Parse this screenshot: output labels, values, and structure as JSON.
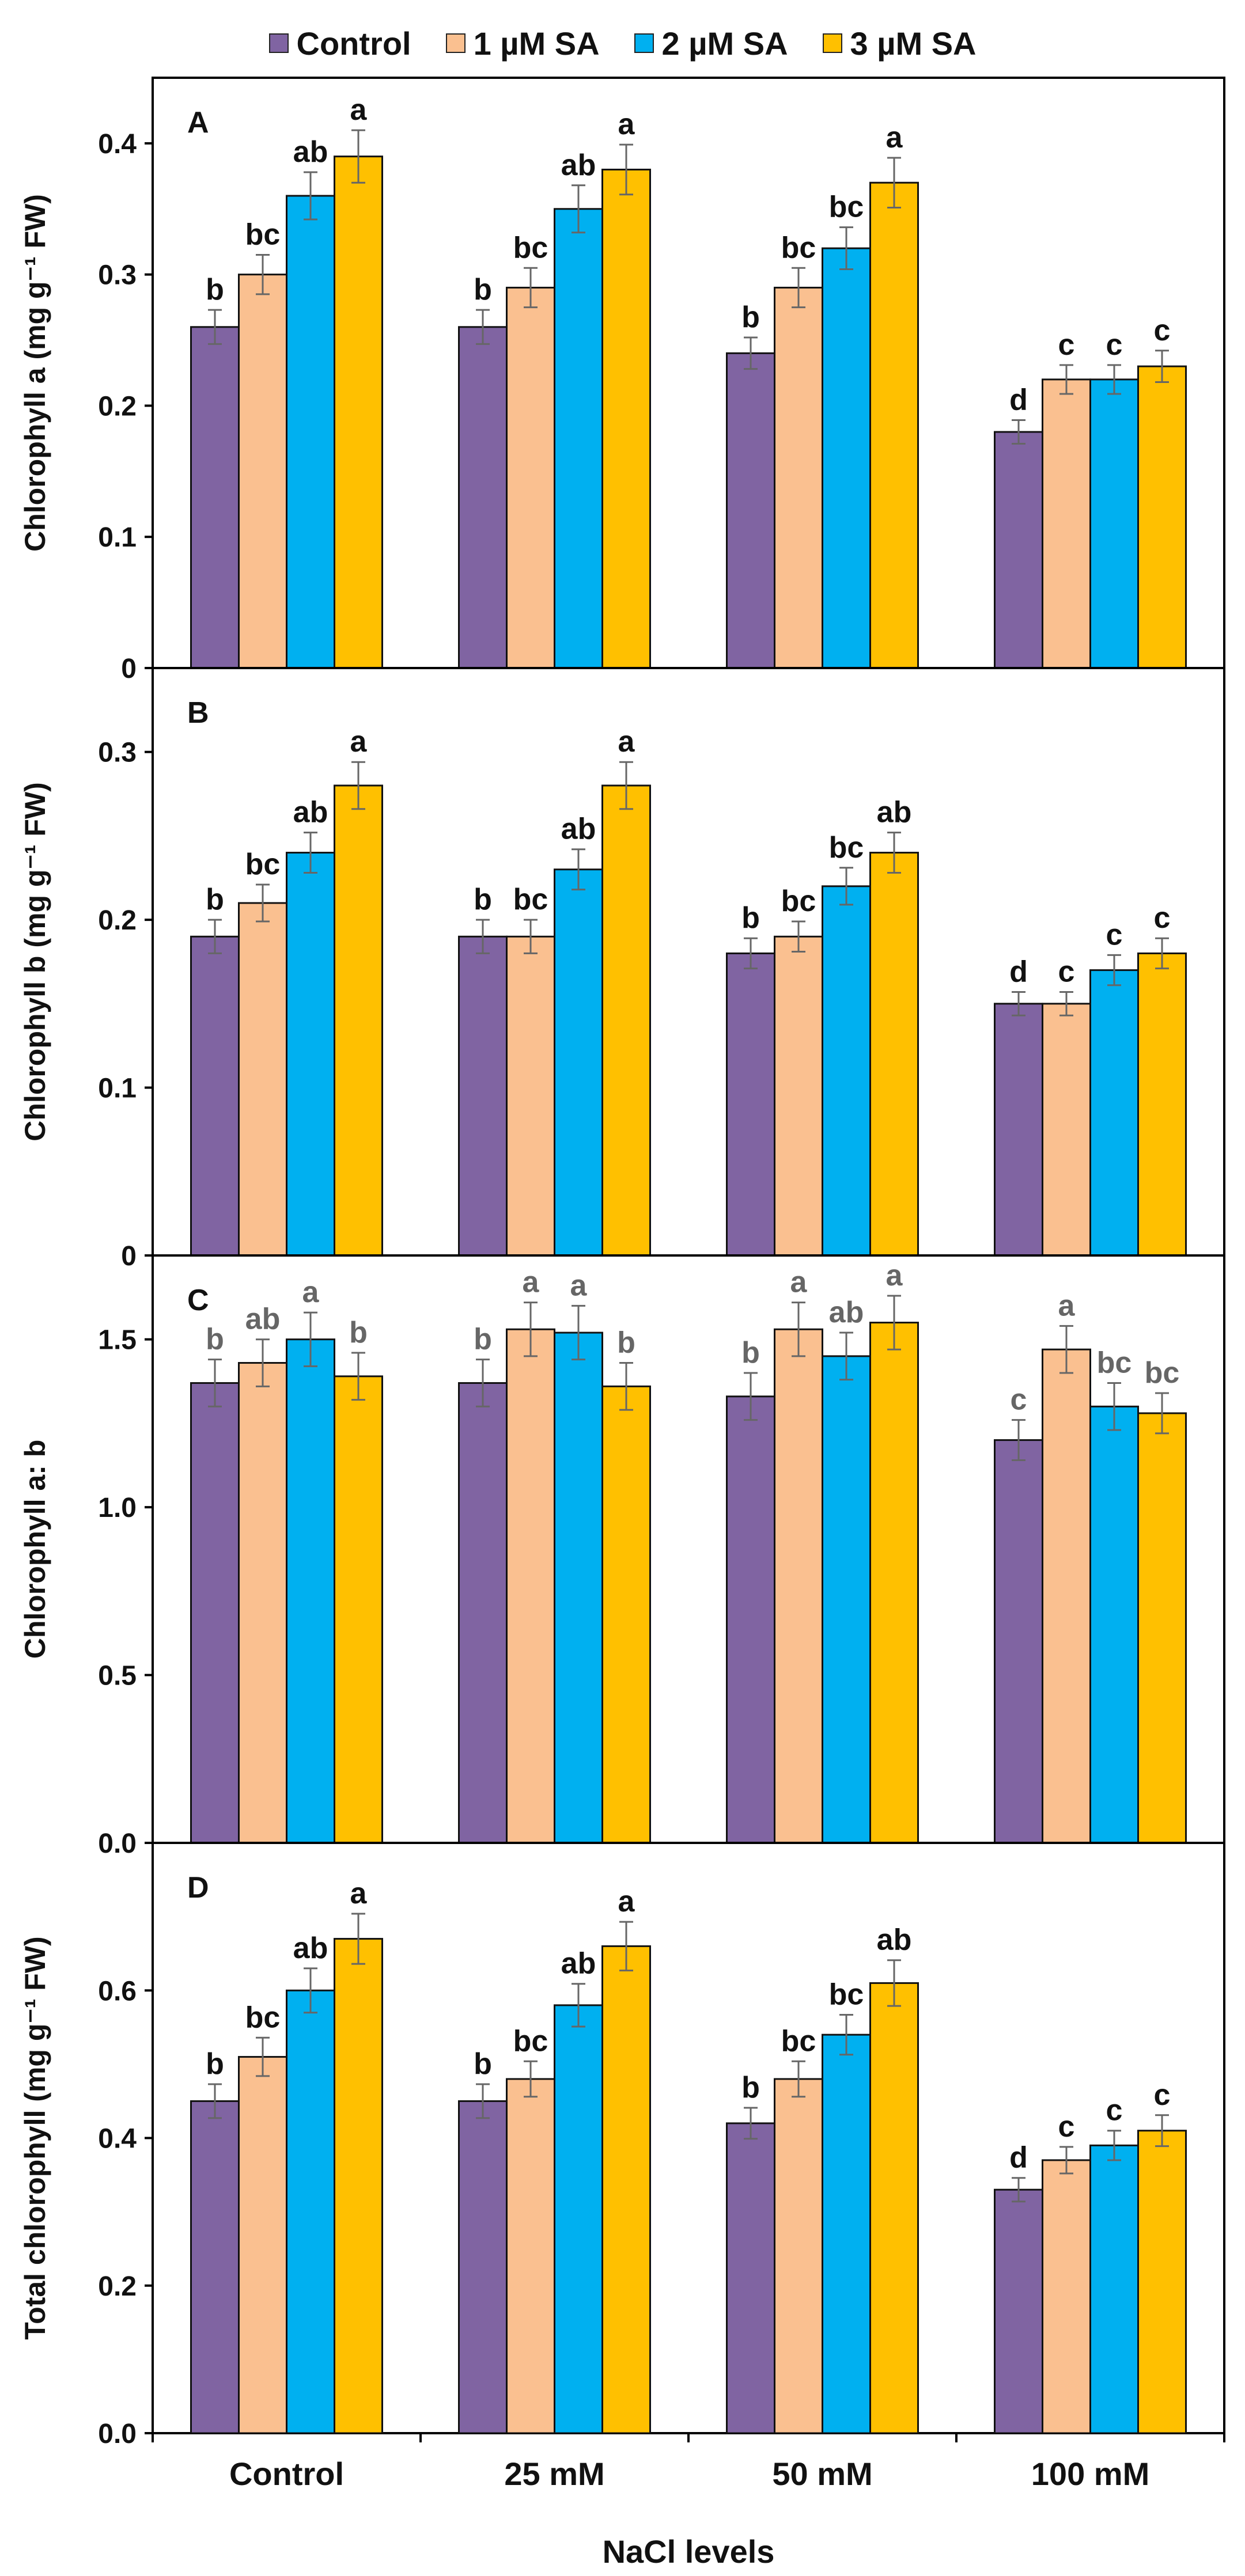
{
  "legend": [
    {
      "label": "Control",
      "color": "#8064a2"
    },
    {
      "label": "1 µM SA",
      "color": "#fac090"
    },
    {
      "label": "2 µM SA",
      "color": "#00b0f0"
    },
    {
      "label": "3 µM SA",
      "color": "#ffc000"
    }
  ],
  "chart_data": [
    {
      "panel": "A",
      "type": "bar",
      "categories": [
        "Control",
        "25 mM",
        "50 mM",
        "100 mM"
      ],
      "ylabel": "Chlorophyll a (mg g⁻¹ FW)",
      "ylim": [
        0,
        0.45
      ],
      "yticks": [
        0,
        0.1,
        0.2,
        0.3,
        0.4
      ],
      "ytick_labels": [
        "0",
        "0.1",
        "0.2",
        "0.3",
        "0.4"
      ],
      "series": [
        {
          "name": "Control",
          "values": [
            0.26,
            0.26,
            0.24,
            0.18
          ],
          "errors": [
            0.013,
            0.013,
            0.012,
            0.009
          ],
          "labels": [
            "b",
            "b",
            "b",
            "d"
          ]
        },
        {
          "name": "1 µM SA",
          "values": [
            0.3,
            0.29,
            0.29,
            0.22
          ],
          "errors": [
            0.015,
            0.015,
            0.015,
            0.011
          ],
          "labels": [
            "bc",
            "bc",
            "bc",
            "c"
          ]
        },
        {
          "name": "2 µM SA",
          "values": [
            0.36,
            0.35,
            0.32,
            0.22
          ],
          "errors": [
            0.018,
            0.018,
            0.016,
            0.011
          ],
          "labels": [
            "ab",
            "ab",
            "bc",
            "c"
          ]
        },
        {
          "name": "3 µM SA",
          "values": [
            0.39,
            0.38,
            0.37,
            0.23
          ],
          "errors": [
            0.02,
            0.019,
            0.019,
            0.012
          ],
          "labels": [
            "a",
            "a",
            "a",
            "c"
          ]
        }
      ]
    },
    {
      "panel": "B",
      "type": "bar",
      "categories": [
        "Control",
        "25 mM",
        "50 mM",
        "100 mM"
      ],
      "ylabel": "Chlorophyll b (mg g⁻¹ FW)",
      "ylim": [
        0,
        0.35
      ],
      "yticks": [
        0,
        0.1,
        0.2,
        0.3
      ],
      "ytick_labels": [
        "0",
        "0.1",
        "0.2",
        "0.3"
      ],
      "series": [
        {
          "name": "Control",
          "values": [
            0.19,
            0.19,
            0.18,
            0.15
          ],
          "errors": [
            0.01,
            0.01,
            0.009,
            0.007
          ],
          "labels": [
            "b",
            "b",
            "b",
            "d"
          ]
        },
        {
          "name": "1 µM SA",
          "values": [
            0.21,
            0.19,
            0.19,
            0.15
          ],
          "errors": [
            0.011,
            0.01,
            0.009,
            0.007
          ],
          "labels": [
            "bc",
            "bc",
            "bc",
            "c"
          ]
        },
        {
          "name": "2 µM SA",
          "values": [
            0.24,
            0.23,
            0.22,
            0.17
          ],
          "errors": [
            0.012,
            0.012,
            0.011,
            0.009
          ],
          "labels": [
            "ab",
            "ab",
            "bc",
            "c"
          ]
        },
        {
          "name": "3 µM SA",
          "values": [
            0.28,
            0.28,
            0.24,
            0.18
          ],
          "errors": [
            0.014,
            0.014,
            0.012,
            0.009
          ],
          "labels": [
            "a",
            "a",
            "ab",
            "c"
          ]
        }
      ]
    },
    {
      "panel": "C",
      "type": "bar",
      "label_color": "grey",
      "categories": [
        "Control",
        "25 mM",
        "50 mM",
        "100 mM"
      ],
      "ylabel": "Chlorophyll a: b",
      "ylim": [
        0,
        1.75
      ],
      "yticks": [
        0,
        0.5,
        1.0,
        1.5
      ],
      "ytick_labels": [
        "0.0",
        "0.5",
        "1.0",
        "1.5"
      ],
      "series": [
        {
          "name": "Control",
          "values": [
            1.37,
            1.37,
            1.33,
            1.2
          ],
          "errors": [
            0.07,
            0.07,
            0.07,
            0.06
          ],
          "labels": [
            "b",
            "b",
            "b",
            "c"
          ]
        },
        {
          "name": "1 µM SA",
          "values": [
            1.43,
            1.53,
            1.53,
            1.47
          ],
          "errors": [
            0.07,
            0.08,
            0.08,
            0.07
          ],
          "labels": [
            "ab",
            "a",
            "a",
            "a"
          ]
        },
        {
          "name": "2 µM SA",
          "values": [
            1.5,
            1.52,
            1.45,
            1.3
          ],
          "errors": [
            0.08,
            0.08,
            0.07,
            0.07
          ],
          "labels": [
            "a",
            "a",
            "ab",
            "bc"
          ]
        },
        {
          "name": "3 µM SA",
          "values": [
            1.39,
            1.36,
            1.55,
            1.28
          ],
          "errors": [
            0.07,
            0.07,
            0.08,
            0.06
          ],
          "labels": [
            "b",
            "b",
            "a",
            "bc"
          ]
        }
      ]
    },
    {
      "panel": "D",
      "type": "bar",
      "categories": [
        "Control",
        "25 mM",
        "50 mM",
        "100 mM"
      ],
      "ylabel": "Total chlorophyll (mg g⁻¹ FW)",
      "ylim": [
        0,
        0.8
      ],
      "yticks": [
        0,
        0.2,
        0.4,
        0.6
      ],
      "ytick_labels": [
        "0.0",
        "0.2",
        "0.4",
        "0.6"
      ],
      "xlabel": "NaCl levels",
      "series": [
        {
          "name": "Control",
          "values": [
            0.45,
            0.45,
            0.42,
            0.33
          ],
          "errors": [
            0.023,
            0.023,
            0.021,
            0.016
          ],
          "labels": [
            "b",
            "b",
            "b",
            "d"
          ]
        },
        {
          "name": "1 µM SA",
          "values": [
            0.51,
            0.48,
            0.48,
            0.37
          ],
          "errors": [
            0.026,
            0.024,
            0.024,
            0.018
          ],
          "labels": [
            "bc",
            "bc",
            "bc",
            "c"
          ]
        },
        {
          "name": "2 µM SA",
          "values": [
            0.6,
            0.58,
            0.54,
            0.39
          ],
          "errors": [
            0.03,
            0.029,
            0.027,
            0.02
          ],
          "labels": [
            "ab",
            "ab",
            "bc",
            "c"
          ]
        },
        {
          "name": "3 µM SA",
          "values": [
            0.67,
            0.66,
            0.61,
            0.41
          ],
          "errors": [
            0.034,
            0.033,
            0.031,
            0.021
          ],
          "labels": [
            "a",
            "a",
            "ab",
            "c"
          ]
        }
      ]
    }
  ]
}
